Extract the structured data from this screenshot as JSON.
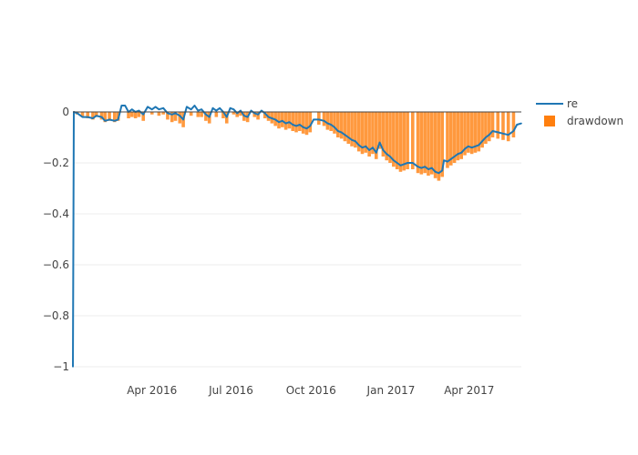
{
  "chart_data": {
    "type": "line+bar",
    "title": "",
    "xlabel": "",
    "ylabel": "",
    "x_start": "2016-01-01",
    "x_end": "2017-05-31",
    "ylim": [
      -1,
      0
    ],
    "grid": true,
    "legend_position": "top-right",
    "y_ticks": [
      {
        "value": 0,
        "label": "0"
      },
      {
        "value": -0.2,
        "label": "−0.2"
      },
      {
        "value": -0.4,
        "label": "−0.4"
      },
      {
        "value": -0.6,
        "label": "−0.6"
      },
      {
        "value": -0.8,
        "label": "−0.8"
      },
      {
        "value": -1,
        "label": "−1"
      }
    ],
    "x_ticks": [
      {
        "date": "2016-04-01",
        "label": "Apr 2016"
      },
      {
        "date": "2016-07-01",
        "label": "Jul 2016"
      },
      {
        "date": "2016-10-01",
        "label": "Oct 2016"
      },
      {
        "date": "2017-01-01",
        "label": "Jan 2017"
      },
      {
        "date": "2017-04-01",
        "label": "Apr 2017"
      }
    ],
    "series": [
      {
        "name": "re",
        "kind": "line",
        "color": "#1f77b4",
        "points": [
          [
            "2016-01-01",
            -1.0
          ],
          [
            "2016-01-02",
            0.0
          ],
          [
            "2016-01-06",
            -0.005
          ],
          [
            "2016-01-12",
            -0.02
          ],
          [
            "2016-01-18",
            -0.02
          ],
          [
            "2016-01-24",
            -0.025
          ],
          [
            "2016-01-28",
            -0.015
          ],
          [
            "2016-02-03",
            -0.02
          ],
          [
            "2016-02-07",
            -0.035
          ],
          [
            "2016-02-12",
            -0.03
          ],
          [
            "2016-02-18",
            -0.035
          ],
          [
            "2016-02-22",
            -0.03
          ],
          [
            "2016-02-26",
            0.025
          ],
          [
            "2016-03-01",
            0.025
          ],
          [
            "2016-03-05",
            0.0
          ],
          [
            "2016-03-09",
            0.01
          ],
          [
            "2016-03-13",
            0.0
          ],
          [
            "2016-03-17",
            0.005
          ],
          [
            "2016-03-22",
            -0.01
          ],
          [
            "2016-03-27",
            0.02
          ],
          [
            "2016-04-01",
            0.01
          ],
          [
            "2016-04-05",
            0.02
          ],
          [
            "2016-04-09",
            0.01
          ],
          [
            "2016-04-14",
            0.015
          ],
          [
            "2016-04-19",
            -0.005
          ],
          [
            "2016-04-24",
            -0.01
          ],
          [
            "2016-04-28",
            -0.005
          ],
          [
            "2016-05-03",
            -0.015
          ],
          [
            "2016-05-07",
            -0.03
          ],
          [
            "2016-05-11",
            0.02
          ],
          [
            "2016-05-16",
            0.01
          ],
          [
            "2016-05-20",
            0.025
          ],
          [
            "2016-05-24",
            0.005
          ],
          [
            "2016-05-28",
            0.01
          ],
          [
            "2016-06-02",
            -0.01
          ],
          [
            "2016-06-06",
            -0.02
          ],
          [
            "2016-06-10",
            0.015
          ],
          [
            "2016-06-14",
            0.005
          ],
          [
            "2016-06-18",
            0.015
          ],
          [
            "2016-06-22",
            0.0
          ],
          [
            "2016-06-26",
            -0.02
          ],
          [
            "2016-06-30",
            0.015
          ],
          [
            "2016-07-04",
            0.01
          ],
          [
            "2016-07-08",
            -0.005
          ],
          [
            "2016-07-12",
            0.005
          ],
          [
            "2016-07-16",
            -0.015
          ],
          [
            "2016-07-20",
            -0.02
          ],
          [
            "2016-07-24",
            0.005
          ],
          [
            "2016-07-28",
            -0.005
          ],
          [
            "2016-08-01",
            -0.01
          ],
          [
            "2016-08-05",
            0.005
          ],
          [
            "2016-08-09",
            -0.005
          ],
          [
            "2016-08-13",
            -0.02
          ],
          [
            "2016-08-17",
            -0.025
          ],
          [
            "2016-08-21",
            -0.03
          ],
          [
            "2016-08-25",
            -0.04
          ],
          [
            "2016-08-29",
            -0.035
          ],
          [
            "2016-09-02",
            -0.045
          ],
          [
            "2016-09-06",
            -0.04
          ],
          [
            "2016-09-10",
            -0.05
          ],
          [
            "2016-09-14",
            -0.055
          ],
          [
            "2016-09-18",
            -0.05
          ],
          [
            "2016-09-22",
            -0.06
          ],
          [
            "2016-09-26",
            -0.065
          ],
          [
            "2016-09-30",
            -0.055
          ],
          [
            "2016-10-04",
            -0.03
          ],
          [
            "2016-10-10",
            -0.03
          ],
          [
            "2016-10-16",
            -0.035
          ],
          [
            "2016-10-20",
            -0.045
          ],
          [
            "2016-10-24",
            -0.05
          ],
          [
            "2016-10-28",
            -0.06
          ],
          [
            "2016-11-01",
            -0.075
          ],
          [
            "2016-11-05",
            -0.08
          ],
          [
            "2016-11-09",
            -0.09
          ],
          [
            "2016-11-13",
            -0.1
          ],
          [
            "2016-11-17",
            -0.11
          ],
          [
            "2016-11-21",
            -0.115
          ],
          [
            "2016-11-25",
            -0.13
          ],
          [
            "2016-11-29",
            -0.14
          ],
          [
            "2016-12-03",
            -0.135
          ],
          [
            "2016-12-07",
            -0.15
          ],
          [
            "2016-12-11",
            -0.14
          ],
          [
            "2016-12-15",
            -0.16
          ],
          [
            "2016-12-19",
            -0.12
          ],
          [
            "2016-12-23",
            -0.15
          ],
          [
            "2016-12-27",
            -0.165
          ],
          [
            "2016-12-31",
            -0.175
          ],
          [
            "2017-01-04",
            -0.19
          ],
          [
            "2017-01-08",
            -0.2
          ],
          [
            "2017-01-12",
            -0.21
          ],
          [
            "2017-01-16",
            -0.205
          ],
          [
            "2017-01-20",
            -0.2
          ],
          [
            "2017-01-26",
            -0.2
          ],
          [
            "2017-02-01",
            -0.215
          ],
          [
            "2017-02-05",
            -0.22
          ],
          [
            "2017-02-09",
            -0.215
          ],
          [
            "2017-02-13",
            -0.225
          ],
          [
            "2017-02-17",
            -0.22
          ],
          [
            "2017-02-21",
            -0.235
          ],
          [
            "2017-02-25",
            -0.24
          ],
          [
            "2017-03-01",
            -0.23
          ],
          [
            "2017-03-03",
            -0.19
          ],
          [
            "2017-03-07",
            -0.195
          ],
          [
            "2017-03-11",
            -0.185
          ],
          [
            "2017-03-15",
            -0.175
          ],
          [
            "2017-03-19",
            -0.165
          ],
          [
            "2017-03-23",
            -0.16
          ],
          [
            "2017-03-27",
            -0.145
          ],
          [
            "2017-03-31",
            -0.135
          ],
          [
            "2017-04-04",
            -0.14
          ],
          [
            "2017-04-08",
            -0.135
          ],
          [
            "2017-04-12",
            -0.13
          ],
          [
            "2017-04-16",
            -0.115
          ],
          [
            "2017-04-20",
            -0.1
          ],
          [
            "2017-04-24",
            -0.09
          ],
          [
            "2017-04-28",
            -0.075
          ],
          [
            "2017-05-04",
            -0.08
          ],
          [
            "2017-05-10",
            -0.085
          ],
          [
            "2017-05-16",
            -0.09
          ],
          [
            "2017-05-22",
            -0.075
          ],
          [
            "2017-05-26",
            -0.05
          ],
          [
            "2017-05-31",
            -0.045
          ]
        ]
      },
      {
        "name": "drawdown",
        "kind": "bar",
        "color": "#ff7f0e",
        "fill_opacity": 0.8,
        "points": [
          [
            "2016-01-06",
            -0.01
          ],
          [
            "2016-01-12",
            -0.02
          ],
          [
            "2016-01-18",
            -0.025
          ],
          [
            "2016-01-24",
            -0.03
          ],
          [
            "2016-01-28",
            -0.02
          ],
          [
            "2016-02-03",
            -0.03
          ],
          [
            "2016-02-07",
            -0.04
          ],
          [
            "2016-02-12",
            -0.035
          ],
          [
            "2016-02-18",
            -0.04
          ],
          [
            "2016-02-22",
            -0.035
          ],
          [
            "2016-03-05",
            -0.025
          ],
          [
            "2016-03-09",
            -0.02
          ],
          [
            "2016-03-13",
            -0.025
          ],
          [
            "2016-03-17",
            -0.02
          ],
          [
            "2016-03-22",
            -0.035
          ],
          [
            "2016-04-01",
            -0.01
          ],
          [
            "2016-04-09",
            -0.015
          ],
          [
            "2016-04-14",
            -0.01
          ],
          [
            "2016-04-19",
            -0.03
          ],
          [
            "2016-04-24",
            -0.04
          ],
          [
            "2016-04-28",
            -0.035
          ],
          [
            "2016-05-03",
            -0.045
          ],
          [
            "2016-05-07",
            -0.06
          ],
          [
            "2016-05-16",
            -0.015
          ],
          [
            "2016-05-24",
            -0.02
          ],
          [
            "2016-05-28",
            -0.02
          ],
          [
            "2016-06-02",
            -0.035
          ],
          [
            "2016-06-06",
            -0.045
          ],
          [
            "2016-06-14",
            -0.02
          ],
          [
            "2016-06-22",
            -0.025
          ],
          [
            "2016-06-26",
            -0.045
          ],
          [
            "2016-07-04",
            -0.01
          ],
          [
            "2016-07-08",
            -0.02
          ],
          [
            "2016-07-12",
            -0.015
          ],
          [
            "2016-07-16",
            -0.035
          ],
          [
            "2016-07-20",
            -0.04
          ],
          [
            "2016-07-28",
            -0.02
          ],
          [
            "2016-08-01",
            -0.03
          ],
          [
            "2016-08-09",
            -0.025
          ],
          [
            "2016-08-13",
            -0.035
          ],
          [
            "2016-08-17",
            -0.045
          ],
          [
            "2016-08-21",
            -0.055
          ],
          [
            "2016-08-25",
            -0.065
          ],
          [
            "2016-08-29",
            -0.06
          ],
          [
            "2016-09-02",
            -0.07
          ],
          [
            "2016-09-06",
            -0.065
          ],
          [
            "2016-09-10",
            -0.075
          ],
          [
            "2016-09-14",
            -0.08
          ],
          [
            "2016-09-18",
            -0.075
          ],
          [
            "2016-09-22",
            -0.085
          ],
          [
            "2016-09-26",
            -0.09
          ],
          [
            "2016-09-30",
            -0.08
          ],
          [
            "2016-10-10",
            -0.05
          ],
          [
            "2016-10-16",
            -0.055
          ],
          [
            "2016-10-20",
            -0.07
          ],
          [
            "2016-10-24",
            -0.075
          ],
          [
            "2016-10-28",
            -0.085
          ],
          [
            "2016-11-01",
            -0.1
          ],
          [
            "2016-11-05",
            -0.105
          ],
          [
            "2016-11-09",
            -0.115
          ],
          [
            "2016-11-13",
            -0.125
          ],
          [
            "2016-11-17",
            -0.135
          ],
          [
            "2016-11-21",
            -0.14
          ],
          [
            "2016-11-25",
            -0.155
          ],
          [
            "2016-11-29",
            -0.165
          ],
          [
            "2016-12-03",
            -0.16
          ],
          [
            "2016-12-07",
            -0.175
          ],
          [
            "2016-12-11",
            -0.165
          ],
          [
            "2016-12-15",
            -0.185
          ],
          [
            "2016-12-19",
            -0.145
          ],
          [
            "2016-12-23",
            -0.175
          ],
          [
            "2016-12-27",
            -0.19
          ],
          [
            "2016-12-31",
            -0.2
          ],
          [
            "2017-01-04",
            -0.215
          ],
          [
            "2017-01-08",
            -0.225
          ],
          [
            "2017-01-12",
            -0.235
          ],
          [
            "2017-01-16",
            -0.23
          ],
          [
            "2017-01-20",
            -0.225
          ],
          [
            "2017-01-26",
            -0.225
          ],
          [
            "2017-02-01",
            -0.24
          ],
          [
            "2017-02-05",
            -0.245
          ],
          [
            "2017-02-09",
            -0.24
          ],
          [
            "2017-02-13",
            -0.25
          ],
          [
            "2017-02-17",
            -0.245
          ],
          [
            "2017-02-21",
            -0.26
          ],
          [
            "2017-02-25",
            -0.27
          ],
          [
            "2017-03-01",
            -0.255
          ],
          [
            "2017-03-07",
            -0.22
          ],
          [
            "2017-03-11",
            -0.21
          ],
          [
            "2017-03-15",
            -0.2
          ],
          [
            "2017-03-19",
            -0.19
          ],
          [
            "2017-03-23",
            -0.185
          ],
          [
            "2017-03-27",
            -0.17
          ],
          [
            "2017-03-31",
            -0.16
          ],
          [
            "2017-04-04",
            -0.165
          ],
          [
            "2017-04-08",
            -0.16
          ],
          [
            "2017-04-12",
            -0.155
          ],
          [
            "2017-04-16",
            -0.14
          ],
          [
            "2017-04-20",
            -0.125
          ],
          [
            "2017-04-24",
            -0.115
          ],
          [
            "2017-04-28",
            -0.1
          ],
          [
            "2017-05-04",
            -0.105
          ],
          [
            "2017-05-10",
            -0.11
          ],
          [
            "2017-05-16",
            -0.115
          ],
          [
            "2017-05-22",
            -0.1
          ]
        ]
      }
    ],
    "legend": [
      {
        "label": "re",
        "symbol": "line",
        "color": "#1f77b4"
      },
      {
        "label": "drawdown",
        "symbol": "square",
        "color": "#ff7f0e"
      }
    ]
  }
}
